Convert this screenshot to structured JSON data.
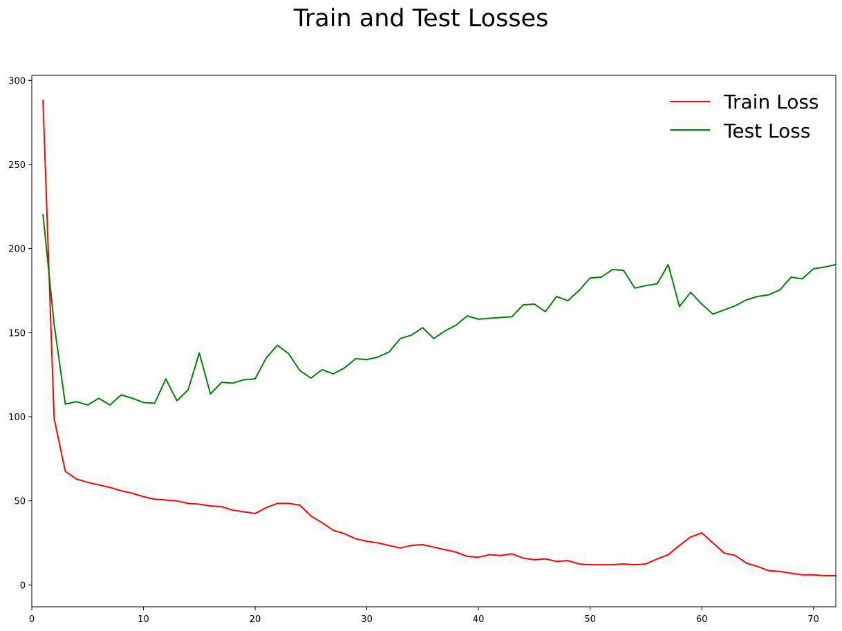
{
  "chart_data": {
    "type": "line",
    "title": "Train and Test Losses",
    "xlabel": "",
    "ylabel": "",
    "xlim": [
      0,
      72
    ],
    "ylim": [
      -13,
      303
    ],
    "x_ticks": [
      0,
      10,
      20,
      30,
      40,
      50,
      60,
      70
    ],
    "y_ticks": [
      0,
      50,
      100,
      150,
      200,
      250,
      300
    ],
    "grid": false,
    "legend_position": "top-right",
    "x": [
      1,
      2,
      3,
      4,
      5,
      6,
      7,
      8,
      9,
      10,
      11,
      12,
      13,
      14,
      15,
      16,
      17,
      18,
      19,
      20,
      21,
      22,
      23,
      24,
      25,
      26,
      27,
      28,
      29,
      30,
      31,
      32,
      33,
      34,
      35,
      36,
      37,
      38,
      39,
      40,
      41,
      42,
      43,
      44,
      45,
      46,
      47,
      48,
      49,
      50,
      51,
      52,
      53,
      54,
      55,
      56,
      57,
      58,
      59,
      60,
      61,
      62,
      63,
      64,
      65,
      66,
      67,
      68,
      69,
      70,
      71,
      72
    ],
    "series": [
      {
        "name": "Train Loss",
        "color": "#ff0000",
        "values": [
          288.5,
          99,
          67.5,
          63,
          61,
          59.5,
          58,
          56,
          54.5,
          52.5,
          51,
          50.5,
          50,
          48.5,
          48,
          47,
          46.5,
          44.5,
          43.5,
          42.5,
          46,
          48.5,
          48.5,
          47.5,
          41,
          37,
          32.5,
          30.5,
          27.5,
          26,
          25,
          23.5,
          22,
          23.5,
          24,
          22.5,
          21,
          19.5,
          17,
          16.5,
          18,
          17.5,
          18.5,
          16,
          15,
          15.5,
          14,
          14.5,
          12.5,
          12,
          12,
          12,
          12.5,
          12,
          12.5,
          15.5,
          18,
          23.5,
          28.5,
          31,
          25,
          19,
          17.5,
          13,
          11,
          8.5,
          8,
          7,
          6,
          6,
          5.5,
          5.5
        ]
      },
      {
        "name": "Test Loss",
        "color": "#008000",
        "values": [
          220.5,
          155,
          107.5,
          109,
          107,
          111,
          107,
          113,
          111,
          108.5,
          108,
          122.5,
          109.5,
          116,
          138,
          113.5,
          120.5,
          120,
          122,
          122.5,
          135,
          142.5,
          137.5,
          127.5,
          123,
          128,
          125.5,
          129,
          134.5,
          134,
          135.5,
          138.5,
          146.5,
          148.5,
          153,
          146.5,
          151,
          154.5,
          160,
          158,
          158.5,
          159,
          159.5,
          166.5,
          167,
          162.5,
          171.5,
          169,
          175,
          182.5,
          183,
          187.5,
          187,
          176.5,
          178,
          179,
          190.5,
          165.5,
          174,
          167,
          161,
          163.5,
          166,
          169.5,
          171.5,
          172.5,
          175.5,
          183,
          182,
          188,
          189,
          190.5
        ]
      }
    ]
  }
}
